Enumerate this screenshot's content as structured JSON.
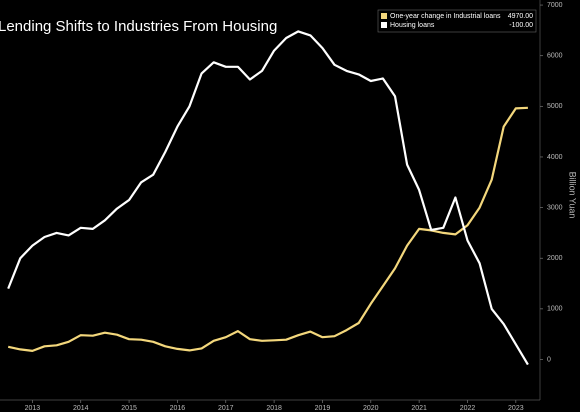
{
  "chart_data": {
    "type": "line",
    "title": "Lending Shifts to Industries From Housing",
    "y_label": "Billion Yuan",
    "x": [
      2013.0,
      2013.25,
      2013.5,
      2013.75,
      2014.0,
      2014.25,
      2014.5,
      2014.75,
      2015.0,
      2015.25,
      2015.5,
      2015.75,
      2016.0,
      2016.25,
      2016.5,
      2016.75,
      2017.0,
      2017.25,
      2017.5,
      2017.75,
      2018.0,
      2018.25,
      2018.5,
      2018.75,
      2019.0,
      2019.25,
      2019.5,
      2019.75,
      2020.0,
      2020.25,
      2020.5,
      2020.75,
      2021.0,
      2021.25,
      2021.5,
      2021.75,
      2022.0,
      2022.25,
      2022.5,
      2022.75,
      2023.0,
      2023.25,
      2023.5,
      2023.75
    ],
    "series": [
      {
        "name": "One-year change in Industrial loans",
        "color": "#f3d77c",
        "last_label": "4970.00",
        "values": [
          250,
          200,
          170,
          260,
          280,
          350,
          480,
          470,
          530,
          490,
          400,
          390,
          350,
          260,
          210,
          180,
          220,
          370,
          440,
          560,
          400,
          370,
          380,
          390,
          480,
          550,
          440,
          460,
          580,
          720,
          1100,
          1450,
          1800,
          2250,
          2580,
          2550,
          2500,
          2470,
          2650,
          3000,
          3550,
          4600,
          4960,
          4970
        ]
      },
      {
        "name": "Housing loans",
        "color": "#ffffff",
        "last_label": "-100.00",
        "values": [
          1400,
          2000,
          2250,
          2420,
          2500,
          2450,
          2600,
          2580,
          2750,
          2980,
          3150,
          3500,
          3650,
          4100,
          4600,
          5000,
          5650,
          5870,
          5780,
          5780,
          5530,
          5700,
          6100,
          6350,
          6480,
          6400,
          6150,
          5820,
          5700,
          5630,
          5500,
          5550,
          5200,
          3850,
          3350,
          2560,
          2600,
          3200,
          2350,
          1900,
          1000,
          700,
          300,
          -100
        ]
      }
    ],
    "xlim": [
      2012.83,
      2024.0
    ],
    "xticks": [
      {
        "value": 2013.5,
        "label": "2013"
      },
      {
        "value": 2014.5,
        "label": "2014"
      },
      {
        "value": 2015.5,
        "label": "2015"
      },
      {
        "value": 2016.5,
        "label": "2016"
      },
      {
        "value": 2017.5,
        "label": "2017"
      },
      {
        "value": 2018.5,
        "label": "2018"
      },
      {
        "value": 2019.5,
        "label": "2019"
      },
      {
        "value": 2020.5,
        "label": "2020"
      },
      {
        "value": 2021.5,
        "label": "2021"
      },
      {
        "value": 2022.5,
        "label": "2022"
      },
      {
        "value": 2023.5,
        "label": "2023"
      }
    ],
    "ylim": [
      -800,
      7100
    ],
    "yticks": [
      0,
      1000,
      2000,
      3000,
      4000,
      5000,
      6000,
      7000
    ],
    "grid": false,
    "legend": "top-right"
  }
}
